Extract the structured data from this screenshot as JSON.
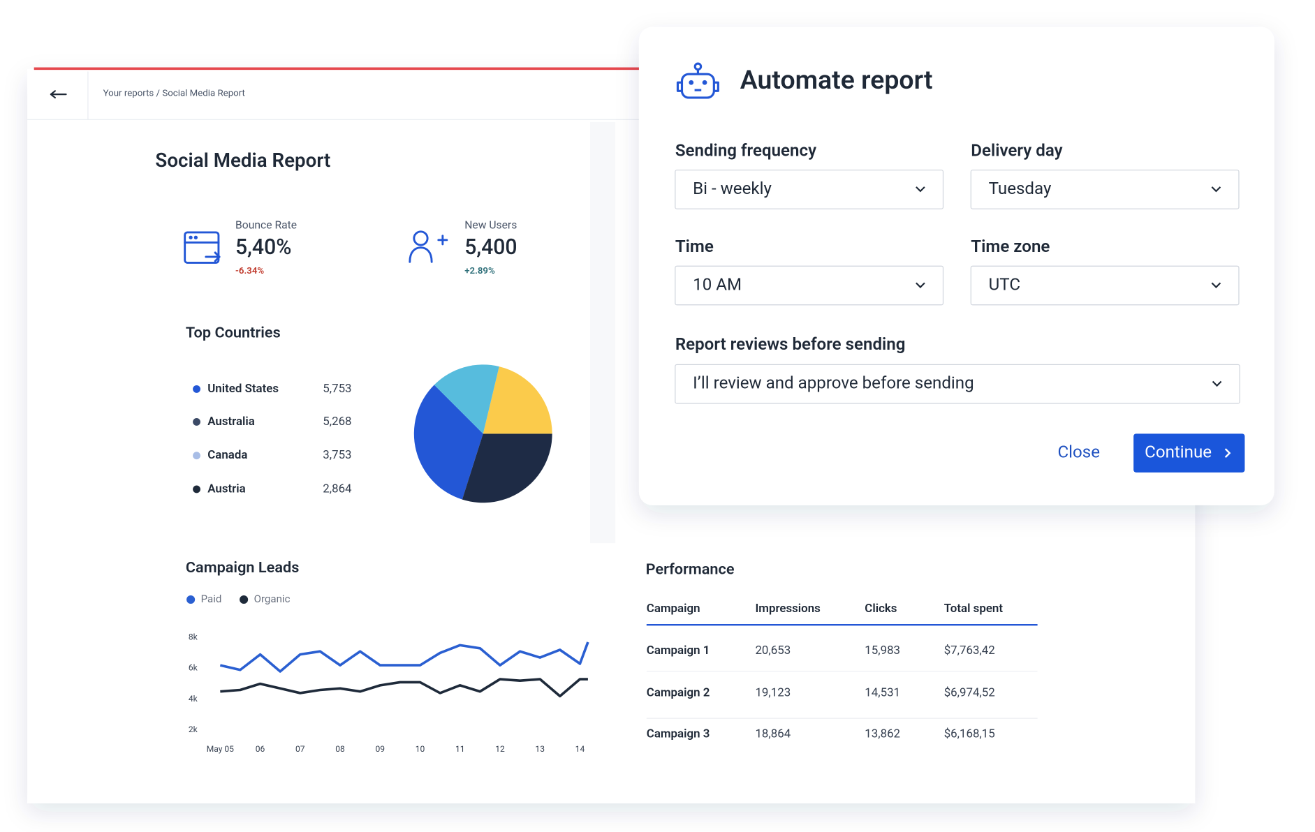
{
  "breadcrumb": "Your reports / Social Media Report",
  "report_title": "Social Media Report",
  "kpis": [
    {
      "label": "Bounce Rate",
      "value": "5,40%",
      "change": "-6.34%"
    },
    {
      "label": "New Users",
      "value": "5,400",
      "change": "+2.89%"
    }
  ],
  "chart_data": [
    {
      "type": "pie",
      "title": "Top Countries",
      "categories": [
        "United States",
        "Australia",
        "Canada",
        "Austria"
      ],
      "values": [
        5753,
        5268,
        3753,
        2864
      ],
      "value_labels": [
        "5,753",
        "5,268",
        "3,753",
        "2,864"
      ],
      "colors": [
        "#2357d6",
        "#1e2b45",
        "#fbcb4b",
        "#57bcdd"
      ],
      "legend_colors": [
        "#2357d6",
        "#3b4a66",
        "#a8bde6",
        "#1e2a3a"
      ]
    },
    {
      "type": "line",
      "title": "Campaign Leads",
      "x": [
        0,
        0.5,
        1,
        1.5,
        2,
        2.5,
        3,
        3.5,
        4,
        4.5,
        5,
        5.5,
        6,
        6.5,
        7,
        7.5,
        8,
        8.5,
        9,
        9.2
      ],
      "series": [
        {
          "name": "Paid",
          "color": "#2a5fd1",
          "values": [
            6.2,
            5.9,
            6.9,
            5.8,
            6.9,
            7.1,
            6.2,
            7.1,
            6.2,
            6.2,
            6.2,
            7.0,
            7.5,
            7.3,
            6.2,
            7.1,
            6.7,
            7.2,
            6.3,
            7.7
          ]
        },
        {
          "name": "Organic",
          "color": "#1e2a3a",
          "values": [
            4.5,
            4.6,
            5.0,
            4.7,
            4.4,
            4.6,
            4.7,
            4.5,
            4.9,
            5.1,
            5.1,
            4.4,
            4.9,
            4.5,
            5.3,
            5.2,
            5.3,
            4.2,
            5.3,
            5.3
          ]
        }
      ],
      "xlim": [
        0,
        9.2
      ],
      "xticks": [
        {
          "value": 0,
          "label": "May 05"
        },
        {
          "value": 1,
          "label": "06"
        },
        {
          "value": 2,
          "label": "07"
        },
        {
          "value": 3,
          "label": "08"
        },
        {
          "value": 4,
          "label": "09"
        },
        {
          "value": 5,
          "label": "10"
        },
        {
          "value": 6,
          "label": "11"
        },
        {
          "value": 7,
          "label": "12"
        },
        {
          "value": 8,
          "label": "13"
        },
        {
          "value": 9,
          "label": "14"
        }
      ],
      "ylim": [
        2,
        8
      ],
      "yticks": [
        {
          "value": 8,
          "label": "8k"
        },
        {
          "value": 6,
          "label": "6k"
        },
        {
          "value": 4,
          "label": "4k"
        },
        {
          "value": 2,
          "label": "2k"
        }
      ]
    }
  ],
  "performance": {
    "title": "Performance",
    "columns": [
      "Campaign",
      "Impressions",
      "Clicks",
      "Total spent"
    ],
    "rows": [
      [
        "Campaign 1",
        "20,653",
        "15,983",
        "$7,763,42"
      ],
      [
        "Campaign 2",
        "19,123",
        "14,531",
        "$6,974,52"
      ],
      [
        "Campaign 3",
        "18,864",
        "13,862",
        "$6,168,15"
      ]
    ]
  },
  "modal": {
    "title": "Automate report",
    "fields": [
      {
        "label": "Sending frequency",
        "value": "Bi - weekly"
      },
      {
        "label": "Delivery day",
        "value": "Tuesday"
      },
      {
        "label": "Time",
        "value": "10 AM"
      },
      {
        "label": "Time zone",
        "value": "UTC"
      },
      {
        "label": "Report reviews before sending",
        "value": "I’ll review and approve before sending"
      }
    ],
    "close": "Close",
    "continue": "Continue"
  }
}
